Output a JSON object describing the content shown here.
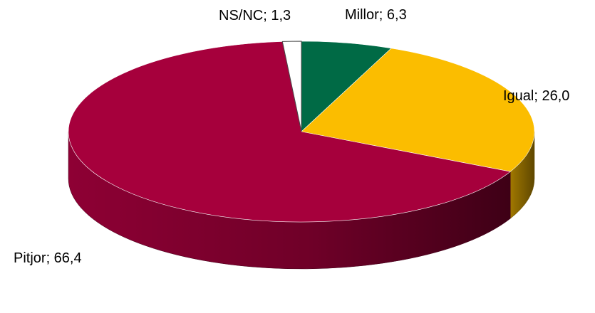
{
  "chart_data": {
    "type": "pie",
    "style": "3d",
    "title": "",
    "categories": [
      "Millor",
      "Igual",
      "Pitjor",
      "NS/NC"
    ],
    "values": [
      6.3,
      26.0,
      66.4,
      1.3
    ],
    "labels": [
      "Millor; 6,3",
      "Igual; 26,0",
      "Pitjor; 66,4",
      "NS/NC; 1,3"
    ],
    "colors": [
      "#006a45",
      "#fbbd00",
      "#a6003c",
      "#ffffff"
    ]
  }
}
